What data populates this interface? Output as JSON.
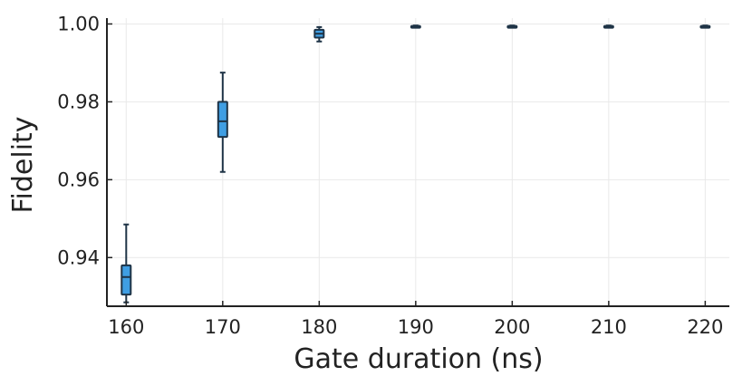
{
  "chart_data": {
    "type": "box",
    "xlabel": "Gate duration (ns)",
    "ylabel": "Fidelity",
    "x_ticks": [
      160,
      170,
      180,
      190,
      200,
      210,
      220
    ],
    "y_ticks": [
      0.94,
      0.96,
      0.98,
      1.0
    ],
    "x_tick_labels": [
      "160",
      "170",
      "180",
      "190",
      "200",
      "210",
      "220"
    ],
    "y_tick_labels": [
      "0.94",
      "0.96",
      "0.98",
      "1.00"
    ],
    "xlim": [
      158,
      222.5
    ],
    "ylim": [
      0.9275,
      1.0015
    ],
    "grid": true,
    "box_color": "#3f9ee3",
    "edge_color": "#1f3447",
    "boxes": [
      {
        "x": 160,
        "min": 0.9285,
        "q1": 0.9305,
        "median": 0.935,
        "q3": 0.938,
        "max": 0.9485
      },
      {
        "x": 170,
        "min": 0.962,
        "q1": 0.971,
        "median": 0.975,
        "q3": 0.98,
        "max": 0.9875
      },
      {
        "x": 180,
        "min": 0.9955,
        "q1": 0.9965,
        "median": 0.9975,
        "q3": 0.9985,
        "max": 0.9992
      },
      {
        "x": 190,
        "min": 0.9992,
        "q1": 0.9993,
        "median": 0.9994,
        "q3": 0.9995,
        "max": 0.9996
      },
      {
        "x": 200,
        "min": 0.9992,
        "q1": 0.9993,
        "median": 0.9994,
        "q3": 0.9995,
        "max": 0.9996
      },
      {
        "x": 210,
        "min": 0.9992,
        "q1": 0.9993,
        "median": 0.9994,
        "q3": 0.9995,
        "max": 0.9996
      },
      {
        "x": 220,
        "min": 0.9992,
        "q1": 0.9993,
        "median": 0.9994,
        "q3": 0.9995,
        "max": 0.9996
      }
    ]
  }
}
